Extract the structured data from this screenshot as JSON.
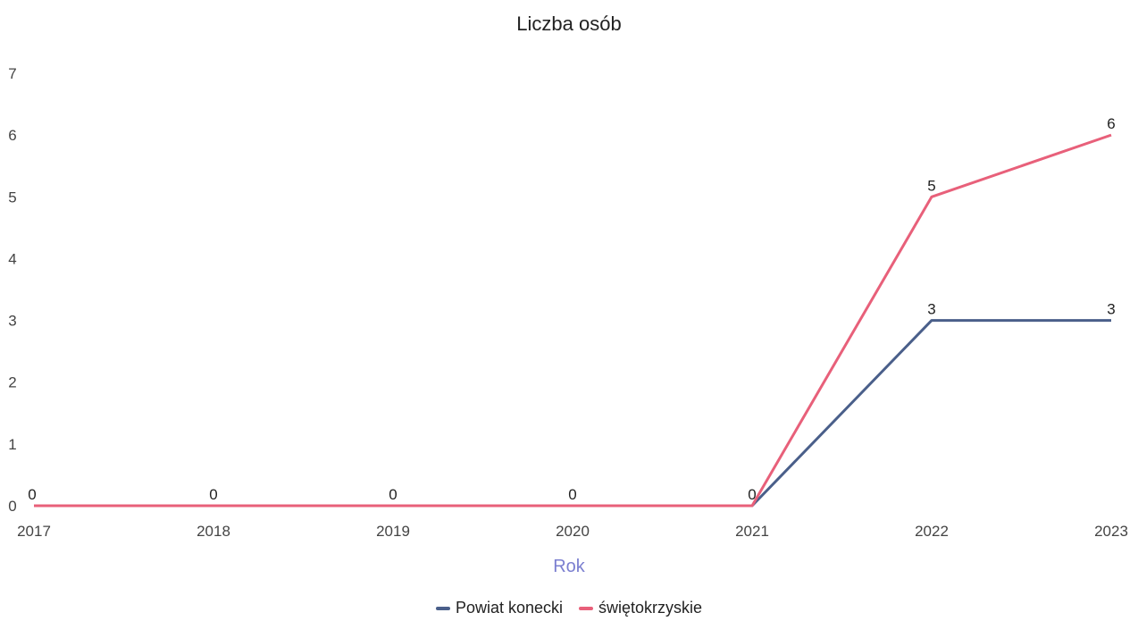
{
  "chart_data": {
    "type": "line",
    "title": "Liczba osób",
    "xlabel": "Rok",
    "ylabel": "",
    "x": [
      "2017",
      "2018",
      "2019",
      "2020",
      "2021",
      "2022",
      "2023"
    ],
    "ylim": [
      0,
      7
    ],
    "yticks": [
      "0",
      "1",
      "2",
      "3",
      "4",
      "5",
      "6",
      "7"
    ],
    "grid": false,
    "legend_position": "bottom",
    "series": [
      {
        "name": "Powiat konecki",
        "color": "#4a5f8a",
        "values": [
          0,
          0,
          0,
          0,
          0,
          3,
          3
        ],
        "labels": [
          "",
          "",
          "",
          "",
          "",
          "3",
          "3"
        ]
      },
      {
        "name": "świętokrzyskie",
        "color": "#e8607a",
        "values": [
          0,
          0,
          0,
          0,
          0,
          5,
          6
        ],
        "labels": [
          "0",
          "0",
          "0",
          "0",
          "0",
          "5",
          "6"
        ]
      }
    ]
  }
}
